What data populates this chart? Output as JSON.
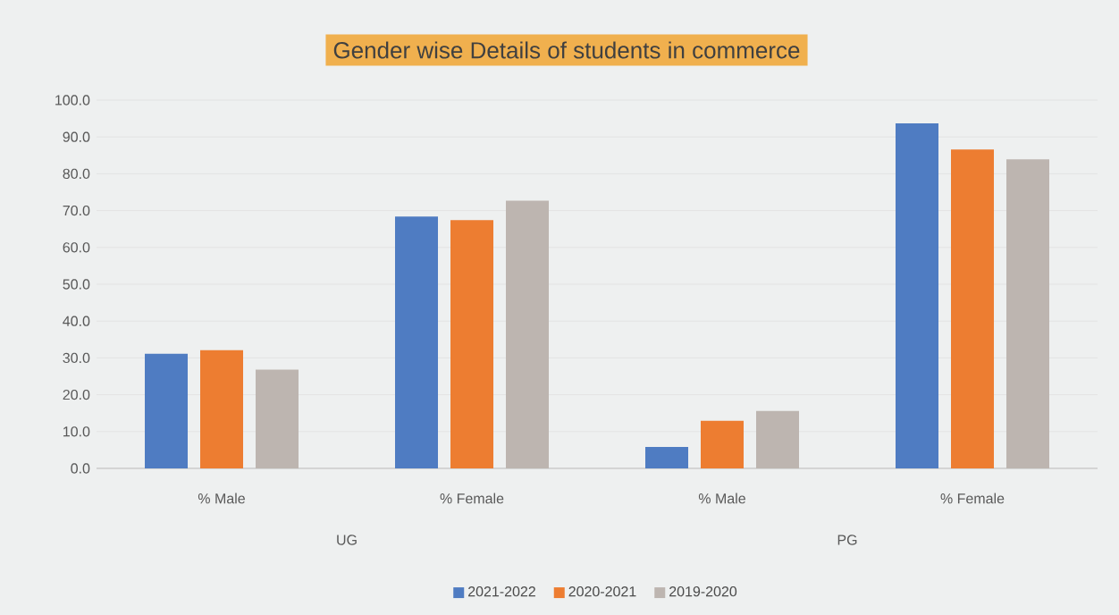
{
  "chart_data": {
    "type": "bar",
    "title": "Gender wise Details of students in commerce",
    "categories": [
      "% Male",
      "% Female",
      "% Male",
      "% Female"
    ],
    "series": [
      {
        "name": "2021-2022",
        "color": "#4f7cc2",
        "values": [
          31.1,
          68.4,
          5.8,
          93.7
        ]
      },
      {
        "name": "2020-2021",
        "color": "#ed7d31",
        "values": [
          32.1,
          67.4,
          12.9,
          86.6
        ]
      },
      {
        "name": "2019-2020",
        "color": "#bdb5b0",
        "values": [
          26.8,
          72.7,
          15.6,
          83.9
        ]
      }
    ],
    "annotations": [
      "UG",
      "PG"
    ],
    "ylim": [
      0,
      100
    ],
    "yticks": [
      {
        "value": 0,
        "label": "0.0"
      },
      {
        "value": 10,
        "label": "10.0"
      },
      {
        "value": 20,
        "label": "20.0"
      },
      {
        "value": 30,
        "label": "30.0"
      },
      {
        "value": 40,
        "label": "40.0"
      },
      {
        "value": 50,
        "label": "50.0"
      },
      {
        "value": 60,
        "label": "60.0"
      },
      {
        "value": 70,
        "label": "70.0"
      },
      {
        "value": 80,
        "label": "80.0"
      },
      {
        "value": 90,
        "label": "90.0"
      },
      {
        "value": 100,
        "label": "100.0"
      }
    ],
    "grid": "y",
    "legend": "bottom"
  }
}
